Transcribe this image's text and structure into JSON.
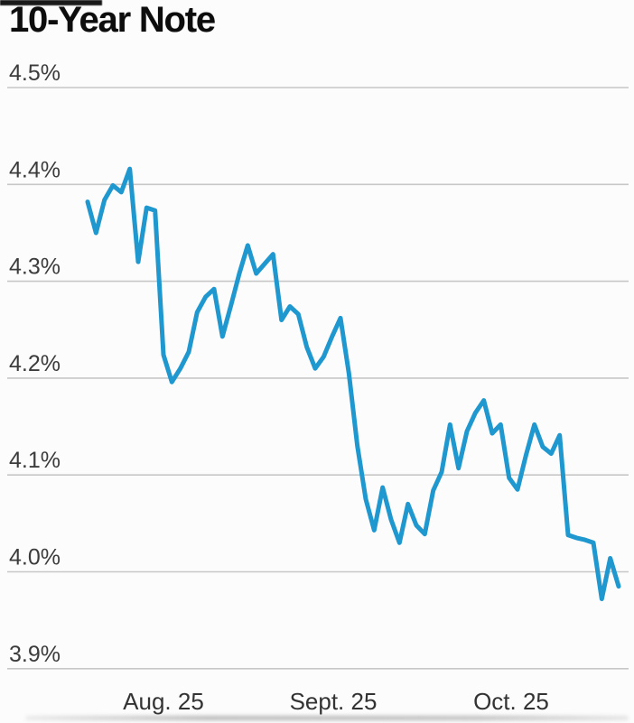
{
  "page": {
    "title": "10-Year Note"
  },
  "chart_data": {
    "type": "line",
    "title": "10-Year Note",
    "unit": "percent yield",
    "grid": "horizontal gridlines on",
    "legend": "none",
    "colors": {
      "line": "#1f97cf",
      "gridline": "#c7c7c7",
      "tick_text": "#3c3c3c",
      "title_text": "#0d0d0d"
    },
    "x_axis": {
      "tick_labels": [
        "Aug. 25",
        "Sept. 25",
        "Oct. 25"
      ]
    },
    "y_axis": {
      "tick_labels": [
        "4.5%",
        "4.4%",
        "4.3%",
        "4.2%",
        "4.1%",
        "4.0%",
        "3.9%"
      ],
      "tick_values": [
        4.5,
        4.4,
        4.3,
        4.2,
        4.1,
        4.0,
        3.9
      ],
      "ylim": [
        3.9,
        4.5
      ]
    },
    "series": [
      {
        "color": "#1f97cf",
        "values": [
          4.382,
          4.35,
          4.384,
          4.399,
          4.392,
          4.416,
          4.32,
          4.376,
          4.373,
          4.224,
          4.196,
          4.21,
          4.227,
          4.268,
          4.284,
          4.292,
          4.243,
          4.275,
          4.308,
          4.337,
          4.308,
          4.318,
          4.328,
          4.26,
          4.274,
          4.266,
          4.232,
          4.21,
          4.222,
          4.243,
          4.262,
          4.205,
          4.13,
          4.075,
          4.043,
          4.087,
          4.054,
          4.03,
          4.07,
          4.048,
          4.039,
          4.084,
          4.103,
          4.152,
          4.107,
          4.145,
          4.164,
          4.177,
          4.143,
          4.152,
          4.097,
          4.085,
          4.12,
          4.152,
          4.129,
          4.122,
          4.141,
          4.038,
          4.035,
          4.033,
          4.03,
          3.972,
          4.014,
          3.985
        ]
      }
    ]
  }
}
